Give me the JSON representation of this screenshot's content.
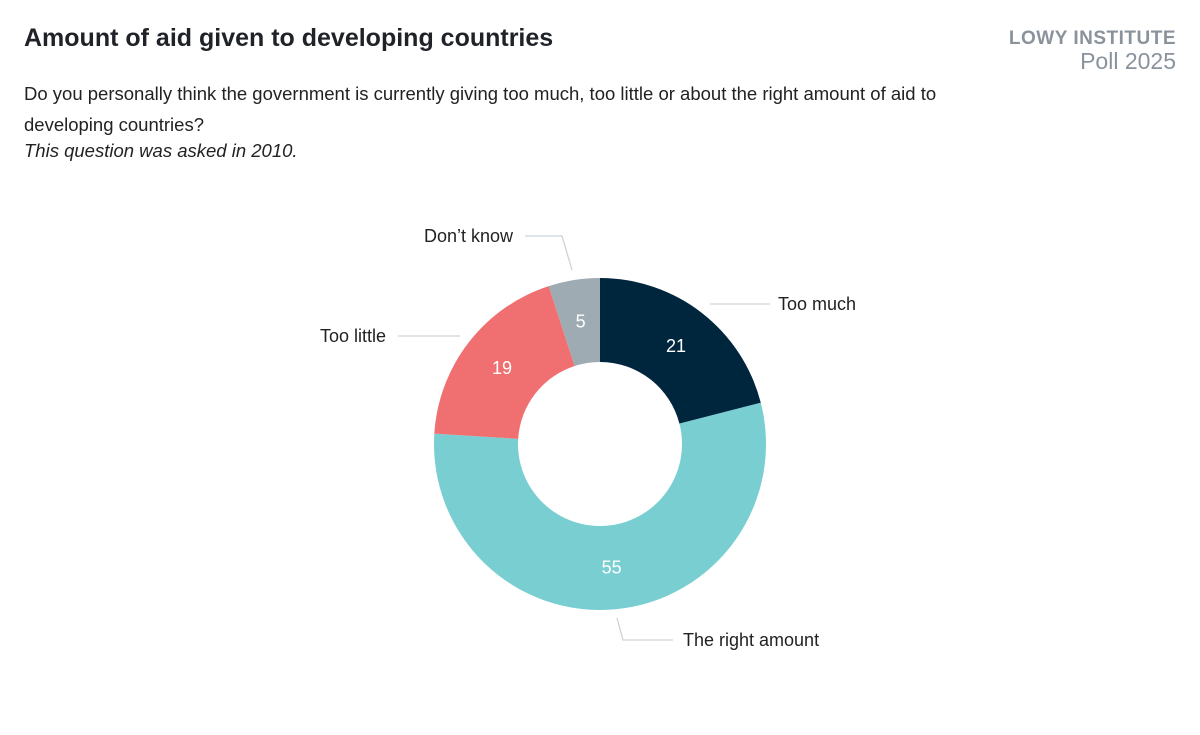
{
  "header": {
    "title": "Amount of aid given to developing countries",
    "subtitle": "Do you personally think the government is currently giving too much, too little or about the right amount of aid to developing countries?",
    "note": "This question was asked in 2010."
  },
  "logo": {
    "line1": "LOWY INSTITUTE",
    "line2": "Poll 2025"
  },
  "chart_data": {
    "type": "pie",
    "variant": "donut",
    "categories": [
      "Too much",
      "The right amount",
      "Too little",
      "Don’t know"
    ],
    "values": [
      21,
      55,
      19,
      5
    ],
    "colors": [
      "#00263e",
      "#79ced1",
      "#f07072",
      "#9eabb2"
    ],
    "value_labels": [
      "21",
      "55",
      "19",
      "5"
    ],
    "start": "top, clockwise"
  }
}
